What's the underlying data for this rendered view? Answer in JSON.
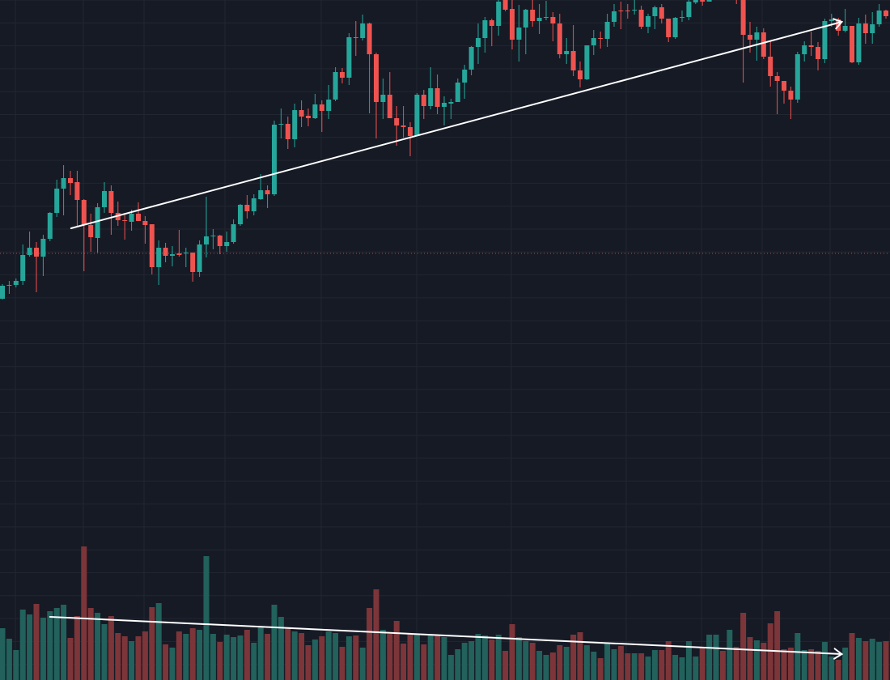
{
  "chart_data": {
    "type": "candlestick",
    "title": "",
    "xlabel": "",
    "ylabel": "",
    "ylim": [
      160,
      1000
    ],
    "volume_ylim": [
      0,
      840
    ],
    "grid": true,
    "colors": {
      "background": "#161a25",
      "up": "#26a69a",
      "down": "#ef5350",
      "volume_up": "#22615c",
      "volume_down": "#7c3539",
      "grid": "#222631",
      "trendline": "#ffffff",
      "price_line": "#ef5350"
    },
    "price_line_value": 687,
    "ohlc": [
      [
        631,
        649,
        630,
        647
      ],
      [
        647,
        653,
        637,
        648
      ],
      [
        648,
        656,
        645,
        653
      ],
      [
        653,
        698,
        648,
        685
      ],
      [
        685,
        714,
        683,
        694
      ],
      [
        694,
        701,
        639,
        683
      ],
      [
        683,
        710,
        659,
        705
      ],
      [
        705,
        738,
        702,
        737
      ],
      [
        737,
        778,
        732,
        767
      ],
      [
        767,
        796,
        734,
        780
      ],
      [
        780,
        789,
        759,
        774
      ],
      [
        775,
        789,
        720,
        753
      ],
      [
        753,
        754,
        665,
        722
      ],
      [
        722,
        736,
        689,
        707
      ],
      [
        706,
        749,
        688,
        744
      ],
      [
        744,
        775,
        737,
        764
      ],
      [
        764,
        771,
        710,
        737
      ],
      [
        737,
        751,
        721,
        728
      ],
      [
        728,
        737,
        704,
        727
      ],
      [
        726,
        741,
        715,
        736
      ],
      [
        736,
        750,
        727,
        727
      ],
      [
        727,
        733,
        699,
        722
      ],
      [
        723,
        723,
        661,
        670
      ],
      [
        670,
        703,
        648,
        694
      ],
      [
        694,
        700,
        676,
        684
      ],
      [
        684,
        696,
        671,
        686
      ],
      [
        687,
        716,
        683,
        685
      ],
      [
        687,
        694,
        670,
        688
      ],
      [
        688,
        688,
        652,
        664
      ],
      [
        664,
        703,
        658,
        698
      ],
      [
        698,
        757,
        682,
        708
      ],
      [
        708,
        717,
        692,
        709
      ],
      [
        709,
        710,
        686,
        696
      ],
      [
        696,
        714,
        689,
        701
      ],
      [
        701,
        729,
        699,
        723
      ],
      [
        723,
        748,
        721,
        747
      ],
      [
        747,
        759,
        730,
        739
      ],
      [
        739,
        760,
        734,
        755
      ],
      [
        754,
        785,
        753,
        765
      ],
      [
        765,
        771,
        743,
        760
      ],
      [
        760,
        851,
        758,
        846
      ],
      [
        846,
        866,
        829,
        847
      ],
      [
        847,
        856,
        816,
        828
      ],
      [
        828,
        872,
        818,
        864
      ],
      [
        864,
        876,
        843,
        856
      ],
      [
        857,
        866,
        844,
        854
      ],
      [
        854,
        884,
        853,
        871
      ],
      [
        871,
        876,
        837,
        863
      ],
      [
        863,
        895,
        853,
        877
      ],
      [
        877,
        917,
        875,
        911
      ],
      [
        911,
        916,
        897,
        904
      ],
      [
        904,
        959,
        895,
        954
      ],
      [
        954,
        974,
        931,
        953
      ],
      [
        953,
        982,
        950,
        971
      ],
      [
        971,
        972,
        860,
        933
      ],
      [
        933,
        935,
        829,
        874
      ],
      [
        874,
        903,
        853,
        883
      ],
      [
        883,
        911,
        854,
        854
      ],
      [
        854,
        869,
        820,
        845
      ],
      [
        845,
        869,
        830,
        843
      ],
      [
        843,
        849,
        807,
        832
      ],
      [
        832,
        885,
        832,
        883
      ],
      [
        883,
        889,
        853,
        869
      ],
      [
        869,
        917,
        865,
        891
      ],
      [
        891,
        908,
        859,
        868
      ],
      [
        868,
        881,
        845,
        873
      ],
      [
        872,
        878,
        853,
        874
      ],
      [
        874,
        903,
        874,
        898
      ],
      [
        898,
        920,
        878,
        914
      ],
      [
        914,
        943,
        907,
        942
      ],
      [
        942,
        971,
        921,
        953
      ],
      [
        953,
        979,
        935,
        975
      ],
      [
        975,
        977,
        943,
        968
      ],
      [
        968,
        1005,
        956,
        998
      ],
      [
        1000,
        1005,
        986,
        988
      ],
      [
        989,
        1002,
        939,
        951
      ],
      [
        951,
        994,
        924,
        966
      ],
      [
        966,
        989,
        933,
        988
      ],
      [
        988,
        1000,
        967,
        974
      ],
      [
        974,
        995,
        958,
        978
      ],
      [
        978,
        999,
        975,
        979
      ],
      [
        979,
        985,
        949,
        971
      ],
      [
        971,
        983,
        928,
        933
      ],
      [
        933,
        953,
        921,
        937
      ],
      [
        937,
        969,
        906,
        913
      ],
      [
        913,
        924,
        892,
        902
      ],
      [
        902,
        944,
        901,
        944
      ],
      [
        944,
        963,
        932,
        953
      ],
      [
        953,
        961,
        940,
        952
      ],
      [
        952,
        983,
        942,
        973
      ],
      [
        973,
        995,
        967,
        986
      ],
      [
        987,
        998,
        964,
        986
      ],
      [
        987,
        995,
        977,
        986
      ],
      [
        987,
        1000,
        982,
        988
      ],
      [
        988,
        993,
        964,
        967
      ],
      [
        967,
        983,
        959,
        980
      ],
      [
        980,
        993,
        964,
        991
      ],
      [
        991,
        995,
        971,
        977
      ],
      [
        977,
        977,
        948,
        954
      ],
      [
        954,
        979,
        952,
        978
      ],
      [
        978,
        987,
        973,
        979
      ],
      [
        979,
        1000,
        975,
        998
      ],
      [
        997,
        1003,
        995,
        1000
      ],
      [
        1000,
        1002,
        993,
        998
      ],
      [
        998,
        1003,
        998,
        1000
      ],
      [
        1003,
        1015,
        1001,
        1010
      ],
      [
        1010,
        1018,
        1002,
        1005
      ],
      [
        1005,
        1020,
        1003,
        1012
      ],
      [
        1008,
        1015,
        995,
        1002
      ],
      [
        1005,
        1010,
        898,
        957
      ],
      [
        957,
        973,
        935,
        951
      ],
      [
        951,
        967,
        925,
        960
      ],
      [
        960,
        965,
        927,
        930
      ],
      [
        930,
        950,
        893,
        906
      ],
      [
        906,
        911,
        859,
        900
      ],
      [
        900,
        900,
        872,
        888
      ],
      [
        888,
        893,
        853,
        877
      ],
      [
        877,
        936,
        873,
        933
      ],
      [
        933,
        949,
        924,
        944
      ],
      [
        944,
        961,
        931,
        942
      ],
      [
        942,
        948,
        913,
        927
      ],
      [
        927,
        977,
        922,
        974
      ],
      [
        974,
        983,
        967,
        976
      ],
      [
        976,
        978,
        956,
        962
      ],
      [
        962,
        989,
        960,
        968
      ],
      [
        968,
        968,
        922,
        923
      ],
      [
        923,
        978,
        920,
        971
      ],
      [
        971,
        982,
        946,
        959
      ],
      [
        959,
        985,
        946,
        970
      ],
      [
        970,
        995,
        967,
        987
      ],
      [
        987,
        988,
        977,
        980
      ],
      [
        980,
        982,
        950,
        953
      ]
    ],
    "volume": [
      64,
      51,
      37,
      87,
      81,
      94,
      77,
      85,
      89,
      93,
      52,
      79,
      165,
      89,
      83,
      69,
      79,
      58,
      54,
      48,
      54,
      60,
      90,
      95,
      44,
      40,
      60,
      57,
      64,
      62,
      153,
      57,
      47,
      56,
      53,
      55,
      62,
      46,
      66,
      57,
      93,
      78,
      65,
      60,
      58,
      43,
      50,
      54,
      60,
      58,
      41,
      54,
      55,
      40,
      89,
      112,
      62,
      57,
      73,
      45,
      57,
      57,
      44,
      55,
      55,
      53,
      31,
      38,
      46,
      48,
      57,
      55,
      50,
      56,
      36,
      69,
      53,
      48,
      46,
      36,
      31,
      34,
      43,
      41,
      56,
      59,
      43,
      35,
      27,
      45,
      38,
      42,
      33,
      33,
      33,
      29,
      37,
      37,
      48,
      31,
      28,
      48,
      29,
      40,
      56,
      56,
      36,
      62,
      41,
      83,
      53,
      49,
      46,
      70,
      85,
      38,
      40,
      58,
      37,
      38,
      36,
      47,
      29,
      25,
      40,
      58,
      52,
      48,
      51,
      47,
      48,
      60
    ],
    "annotations": [
      {
        "type": "arrow-trendline",
        "pane": "price",
        "from": {
          "index": 10.1,
          "value": 718
        },
        "to": {
          "index": 123.5,
          "value": 973
        }
      },
      {
        "type": "arrow-trendline",
        "pane": "volume",
        "from": {
          "index": 7,
          "value": 78
        },
        "to": {
          "index": 123.5,
          "value": 32
        }
      }
    ]
  }
}
